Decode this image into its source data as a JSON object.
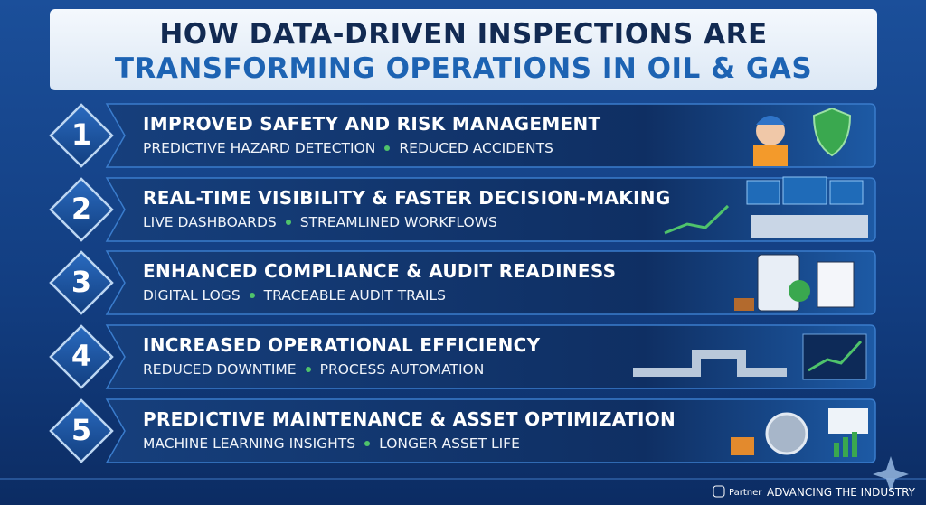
{
  "header": {
    "title_line1": "HOW DATA-DRIVEN INSPECTIONS ARE",
    "title_line2": "TRANSFORMING OPERATIONS IN OIL & GAS"
  },
  "items": [
    {
      "number": "1",
      "heading": "IMPROVED SAFETY AND RISK MANAGEMENT",
      "points": [
        "PREDICTIVE HAZARD DETECTION",
        "REDUCED ACCIDENTS"
      ]
    },
    {
      "number": "2",
      "heading": "REAL-TIME VISIBILITY & FASTER DECISION-MAKING",
      "points": [
        "LIVE DASHBOARDS",
        "STREAMLINED WORKFLOWS"
      ]
    },
    {
      "number": "3",
      "heading": "ENHANCED COMPLIANCE & AUDIT READINESS",
      "points": [
        "DIGITAL LOGS",
        "TRACEABLE AUDIT TRAILS"
      ]
    },
    {
      "number": "4",
      "heading": "INCREASED OPERATIONAL EFFICIENCY",
      "points": [
        "REDUCED DOWNTIME",
        "PROCESS AUTOMATION"
      ]
    },
    {
      "number": "5",
      "heading": "PREDICTIVE MAINTENANCE & ASSET OPTIMIZATION",
      "points": [
        "MACHINE LEARNING INSIGHTS",
        "LONGER ASSET LIFE"
      ]
    }
  ],
  "footer": {
    "partner": "Partner",
    "tagline": "ADVANCING THE INDUSTRY"
  }
}
